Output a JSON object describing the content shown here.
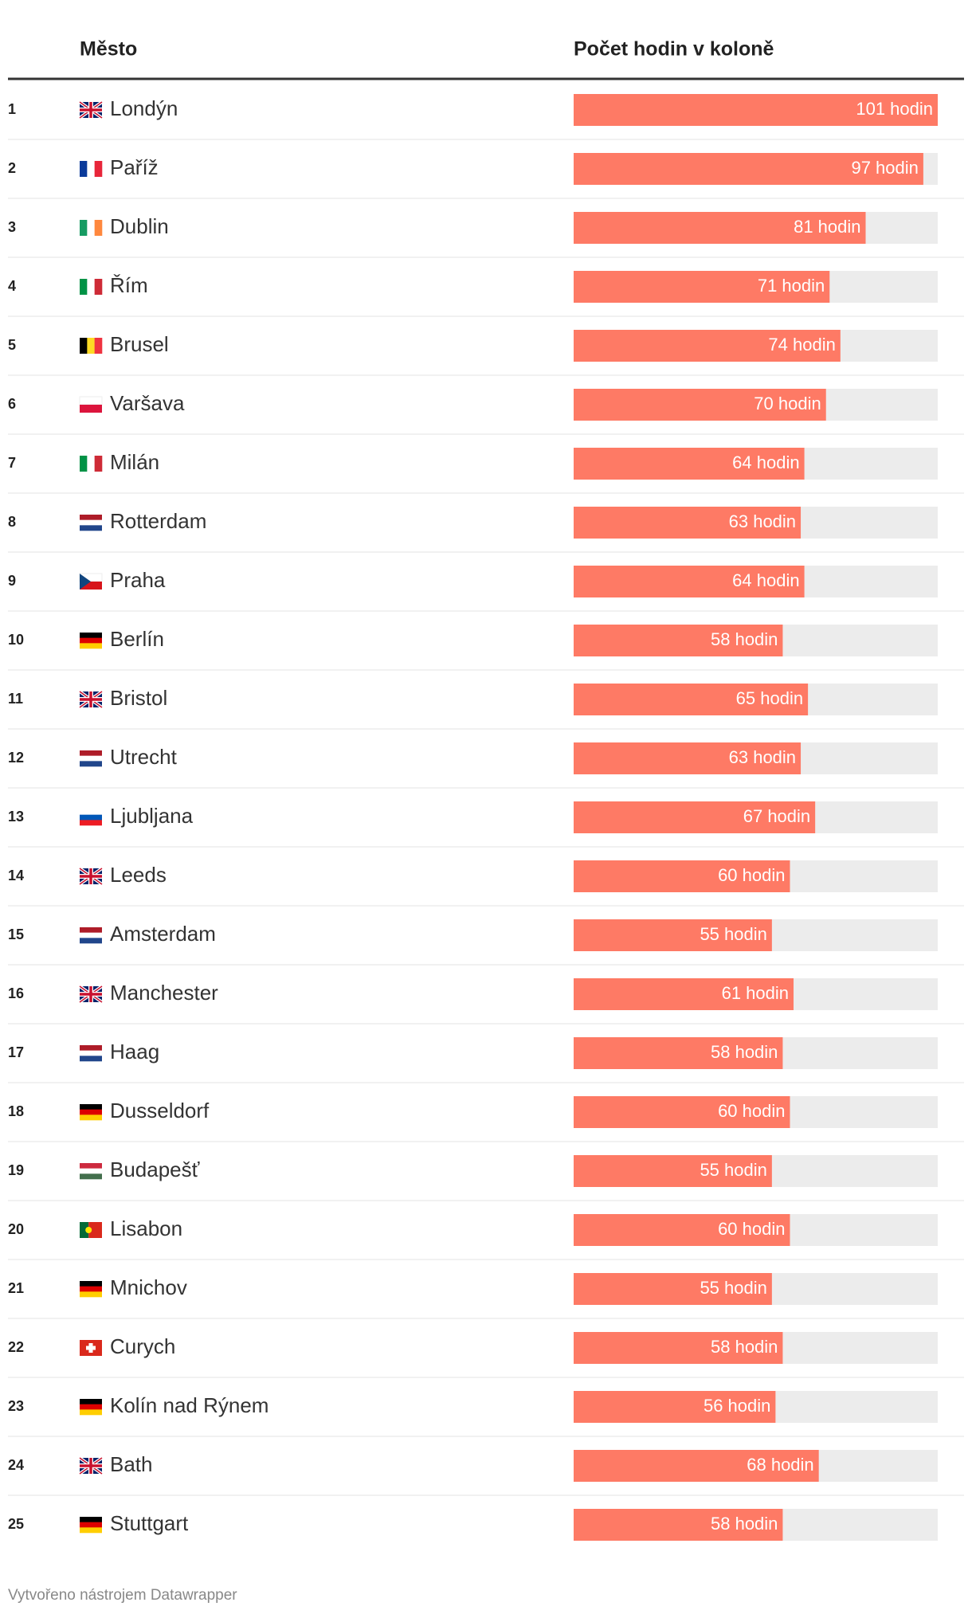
{
  "chart_data": {
    "type": "bar",
    "columns": [
      "Město",
      "Počet hodin v koloně"
    ],
    "ranks": [
      1,
      2,
      3,
      4,
      5,
      6,
      7,
      8,
      9,
      10,
      11,
      12,
      13,
      14,
      15,
      16,
      17,
      18,
      19,
      20,
      21,
      22,
      23,
      24,
      25
    ],
    "categories": [
      "Londýn",
      "Paříž",
      "Dublin",
      "Řím",
      "Brusel",
      "Varšava",
      "Milán",
      "Rotterdam",
      "Praha",
      "Berlín",
      "Bristol",
      "Utrecht",
      "Ljubljana",
      "Leeds",
      "Amsterdam",
      "Manchester",
      "Haag",
      "Dusseldorf",
      "Budapešť",
      "Lisabon",
      "Mnichov",
      "Curych",
      "Kolín nad Rýnem",
      "Bath",
      "Stuttgart"
    ],
    "values": [
      101,
      97,
      81,
      71,
      74,
      70,
      64,
      63,
      64,
      58,
      65,
      63,
      67,
      60,
      55,
      61,
      58,
      60,
      55,
      60,
      55,
      58,
      56,
      68,
      58
    ],
    "value_labels": [
      "101 hodin",
      "97 hodin",
      "81 hodin",
      "71 hodin",
      "74 hodin",
      "70 hodin",
      "64 hodin",
      "63 hodin",
      "64 hodin",
      "58 hodin",
      "65 hodin",
      "63 hodin",
      "67 hodin",
      "60 hodin",
      "55 hodin",
      "61 hodin",
      "58 hodin",
      "60 hodin",
      "55 hodin",
      "60 hodin",
      "55 hodin",
      "58 hodin",
      "56 hodin",
      "68 hodin",
      "58 hodin"
    ],
    "color": "#fe7a65",
    "footer": "Vytvořeno nástrojem Datawrapper"
  }
}
